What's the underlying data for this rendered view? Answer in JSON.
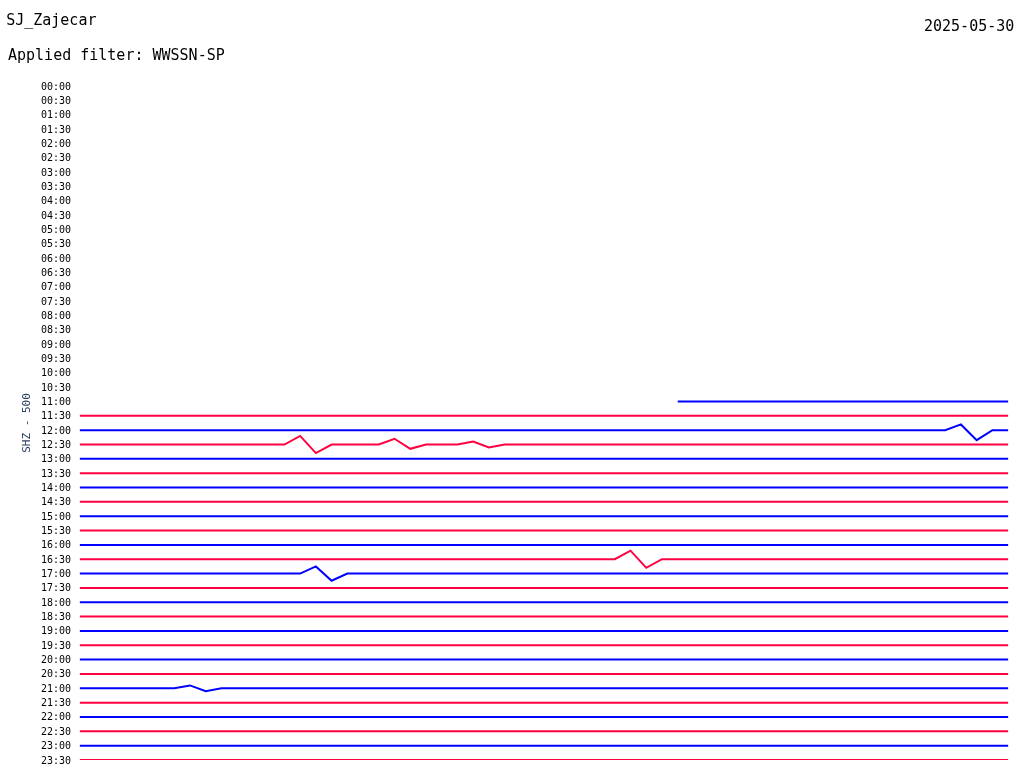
{
  "chart_data": {
    "type": "line",
    "title": "SJ_Zajecar",
    "subtitle": "Applied filter: WWSSN-SP",
    "ylabel": "SHZ - 500",
    "annotations": [
      "2025-05-30"
    ],
    "ylim": [
      23.5,
      0
    ],
    "tick_labels": "y",
    "marker": "none",
    "line_style": "solid",
    "categories": [
      null,
      null,
      null,
      null,
      null,
      null,
      null,
      null,
      null,
      null,
      null,
      null,
      null,
      null,
      null,
      null,
      null,
      null,
      null,
      null,
      null,
      null,
      null,
      null,
      null,
      null,
      null,
      null,
      null,
      null,
      null,
      null,
      null,
      null,
      null,
      null,
      null,
      null,
      null,
      null,
      null,
      null,
      null,
      null,
      null,
      null,
      null,
      null,
      null,
      null,
      null,
      null,
      null,
      null,
      null,
      null,
      null,
      null,
      null,
      null
    ],
    "yticks": [
      {
        "value": 0,
        "label": "00:00"
      },
      {
        "value": 0.5,
        "label": "00:30"
      },
      {
        "value": 1,
        "label": "01:00"
      },
      {
        "value": 1.5,
        "label": "01:30"
      },
      {
        "value": 2,
        "label": "02:00"
      },
      {
        "value": 2.5,
        "label": "02:30"
      },
      {
        "value": 3,
        "label": "03:00"
      },
      {
        "value": 3.5,
        "label": "03:30"
      },
      {
        "value": 4,
        "label": "04:00"
      },
      {
        "value": 4.5,
        "label": "04:30"
      },
      {
        "value": 5,
        "label": "05:00"
      },
      {
        "value": 5.5,
        "label": "05:30"
      },
      {
        "value": 6,
        "label": "06:00"
      },
      {
        "value": 6.5,
        "label": "06:30"
      },
      {
        "value": 7,
        "label": "07:00"
      },
      {
        "value": 7.5,
        "label": "07:30"
      },
      {
        "value": 8,
        "label": "08:00"
      },
      {
        "value": 8.5,
        "label": "08:30"
      },
      {
        "value": 9,
        "label": "09:00"
      },
      {
        "value": 9.5,
        "label": "09:30"
      },
      {
        "value": 10,
        "label": "10:00"
      },
      {
        "value": 10.5,
        "label": "10:30"
      },
      {
        "value": 11,
        "label": "11:00"
      },
      {
        "value": 11.5,
        "label": "11:30"
      },
      {
        "value": 12,
        "label": "12:00"
      },
      {
        "value": 12.5,
        "label": "12:30"
      },
      {
        "value": 13,
        "label": "13:00"
      },
      {
        "value": 13.5,
        "label": "13:30"
      },
      {
        "value": 14,
        "label": "14:00"
      },
      {
        "value": 14.5,
        "label": "14:30"
      },
      {
        "value": 15,
        "label": "15:00"
      },
      {
        "value": 15.5,
        "label": "15:30"
      },
      {
        "value": 16,
        "label": "16:00"
      },
      {
        "value": 16.5,
        "label": "16:30"
      },
      {
        "value": 17,
        "label": "17:00"
      },
      {
        "value": 17.5,
        "label": "17:30"
      },
      {
        "value": 18,
        "label": "18:00"
      },
      {
        "value": 18.5,
        "label": "18:30"
      },
      {
        "value": 19,
        "label": "19:00"
      },
      {
        "value": 19.5,
        "label": "19:30"
      },
      {
        "value": 20,
        "label": "20:00"
      },
      {
        "value": 20.5,
        "label": "20:30"
      },
      {
        "value": 21,
        "label": "21:00"
      },
      {
        "value": 21.5,
        "label": "21:30"
      },
      {
        "value": 22,
        "label": "22:00"
      },
      {
        "value": 22.5,
        "label": "22:30"
      },
      {
        "value": 23,
        "label": "23:00"
      },
      {
        "value": 23.5,
        "label": "23:30"
      }
    ],
    "series": [
      {
        "color": "#0000ff",
        "values": [
          null,
          null,
          null,
          null,
          null,
          null,
          null,
          null,
          null,
          null,
          null,
          null,
          null,
          null,
          null,
          null,
          null,
          null,
          null,
          null,
          null,
          null,
          null,
          null,
          null,
          null,
          null,
          null,
          null,
          null,
          null,
          null,
          null,
          null,
          null,
          null,
          null,
          null,
          11,
          11,
          11,
          11,
          11,
          11,
          11,
          11,
          11,
          11,
          11,
          11,
          11,
          11,
          11,
          11,
          11,
          11,
          11,
          11,
          11,
          11
        ]
      },
      {
        "color": "#ff0040",
        "values": [
          11.5,
          11.5,
          11.5,
          11.5,
          11.5,
          11.5,
          11.5,
          11.5,
          11.5,
          11.5,
          11.5,
          11.5,
          11.5,
          11.5,
          11.5,
          11.5,
          11.5,
          11.5,
          11.5,
          11.5,
          11.5,
          11.5,
          11.5,
          11.5,
          11.5,
          11.5,
          11.5,
          11.5,
          11.5,
          11.5,
          11.5,
          11.5,
          11.5,
          11.5,
          11.5,
          11.5,
          11.5,
          11.5,
          11.5,
          11.5,
          11.5,
          11.5,
          11.5,
          11.5,
          11.5,
          11.5,
          11.5,
          11.5,
          11.5,
          11.5,
          11.5,
          11.5,
          11.5,
          11.5,
          11.5,
          11.5,
          11.5,
          11.5,
          11.5,
          11.5
        ]
      },
      {
        "color": "#0000ff",
        "values": [
          12,
          12,
          12,
          12,
          12,
          12,
          12,
          12,
          12,
          12,
          12,
          12,
          12,
          12,
          12,
          12,
          12,
          12,
          12,
          12,
          12,
          12,
          12,
          12,
          12,
          12,
          12,
          12,
          12,
          12,
          12,
          12,
          12,
          12,
          12,
          12,
          12,
          12,
          12,
          12,
          12,
          12,
          12,
          12,
          12,
          12,
          12,
          12,
          12,
          12,
          12,
          12,
          12,
          12,
          12,
          12,
          11.8,
          12.35,
          12,
          12
        ]
      },
      {
        "color": "#ff0040",
        "values": [
          12.5,
          12.5,
          12.5,
          12.5,
          12.5,
          12.5,
          12.5,
          12.5,
          12.5,
          12.5,
          12.5,
          12.5,
          12.5,
          12.5,
          12.2,
          12.8,
          12.5,
          12.5,
          12.5,
          12.5,
          12.3,
          12.65,
          12.5,
          12.5,
          12.5,
          12.4,
          12.6,
          12.5,
          12.5,
          12.5,
          12.5,
          12.5,
          12.5,
          12.5,
          12.5,
          12.5,
          12.5,
          12.5,
          12.5,
          12.5,
          12.5,
          12.5,
          12.5,
          12.5,
          12.5,
          12.5,
          12.5,
          12.5,
          12.5,
          12.5,
          12.5,
          12.5,
          12.5,
          12.5,
          12.5,
          12.5,
          12.5,
          12.5,
          12.5,
          12.5
        ]
      },
      {
        "color": "#0000ff",
        "values": [
          13,
          13,
          13,
          13,
          13,
          13,
          13,
          13,
          13,
          13,
          13,
          13,
          13,
          13,
          13,
          13,
          13,
          13,
          13,
          13,
          13,
          13,
          13,
          13,
          13,
          13,
          13,
          13,
          13,
          13,
          13,
          13,
          13,
          13,
          13,
          13,
          13,
          13,
          13,
          13,
          13,
          13,
          13,
          13,
          13,
          13,
          13,
          13,
          13,
          13,
          13,
          13,
          13,
          13,
          13,
          13,
          13,
          13,
          13,
          13
        ]
      },
      {
        "color": "#ff0040",
        "values": [
          13.5,
          13.5,
          13.5,
          13.5,
          13.5,
          13.5,
          13.5,
          13.5,
          13.5,
          13.5,
          13.5,
          13.5,
          13.5,
          13.5,
          13.5,
          13.5,
          13.5,
          13.5,
          13.5,
          13.5,
          13.5,
          13.5,
          13.5,
          13.5,
          13.5,
          13.5,
          13.5,
          13.5,
          13.5,
          13.5,
          13.5,
          13.5,
          13.5,
          13.5,
          13.5,
          13.5,
          13.5,
          13.5,
          13.5,
          13.5,
          13.5,
          13.5,
          13.5,
          13.5,
          13.5,
          13.5,
          13.5,
          13.5,
          13.5,
          13.5,
          13.5,
          13.5,
          13.5,
          13.5,
          13.5,
          13.5,
          13.5,
          13.5,
          13.5,
          13.5
        ]
      },
      {
        "color": "#0000ff",
        "values": [
          14,
          14,
          14,
          14,
          14,
          14,
          14,
          14,
          14,
          14,
          14,
          14,
          14,
          14,
          14,
          14,
          14,
          14,
          14,
          14,
          14,
          14,
          14,
          14,
          14,
          14,
          14,
          14,
          14,
          14,
          14,
          14,
          14,
          14,
          14,
          14,
          14,
          14,
          14,
          14,
          14,
          14,
          14,
          14,
          14,
          14,
          14,
          14,
          14,
          14,
          14,
          14,
          14,
          14,
          14,
          14,
          14,
          14,
          14,
          14
        ]
      },
      {
        "color": "#ff0040",
        "values": [
          14.5,
          14.5,
          14.5,
          14.5,
          14.5,
          14.5,
          14.5,
          14.5,
          14.5,
          14.5,
          14.5,
          14.5,
          14.5,
          14.5,
          14.5,
          14.5,
          14.5,
          14.5,
          14.5,
          14.5,
          14.5,
          14.5,
          14.5,
          14.5,
          14.5,
          14.5,
          14.5,
          14.5,
          14.5,
          14.5,
          14.5,
          14.5,
          14.5,
          14.5,
          14.5,
          14.5,
          14.5,
          14.5,
          14.5,
          14.5,
          14.5,
          14.5,
          14.5,
          14.5,
          14.5,
          14.5,
          14.5,
          14.5,
          14.5,
          14.5,
          14.5,
          14.5,
          14.5,
          14.5,
          14.5,
          14.5,
          14.5,
          14.5,
          14.5,
          14.5
        ]
      },
      {
        "color": "#0000ff",
        "values": [
          15,
          15,
          15,
          15,
          15,
          15,
          15,
          15,
          15,
          15,
          15,
          15,
          15,
          15,
          15,
          15,
          15,
          15,
          15,
          15,
          15,
          15,
          15,
          15,
          15,
          15,
          15,
          15,
          15,
          15,
          15,
          15,
          15,
          15,
          15,
          15,
          15,
          15,
          15,
          15,
          15,
          15,
          15,
          15,
          15,
          15,
          15,
          15,
          15,
          15,
          15,
          15,
          15,
          15,
          15,
          15,
          15,
          15,
          15,
          15
        ]
      },
      {
        "color": "#ff0040",
        "values": [
          15.5,
          15.5,
          15.5,
          15.5,
          15.5,
          15.5,
          15.5,
          15.5,
          15.5,
          15.5,
          15.5,
          15.5,
          15.5,
          15.5,
          15.5,
          15.5,
          15.5,
          15.5,
          15.5,
          15.5,
          15.5,
          15.5,
          15.5,
          15.5,
          15.5,
          15.5,
          15.5,
          15.5,
          15.5,
          15.5,
          15.5,
          15.5,
          15.5,
          15.5,
          15.5,
          15.5,
          15.5,
          15.5,
          15.5,
          15.5,
          15.5,
          15.5,
          15.5,
          15.5,
          15.5,
          15.5,
          15.5,
          15.5,
          15.5,
          15.5,
          15.5,
          15.5,
          15.5,
          15.5,
          15.5,
          15.5,
          15.5,
          15.5,
          15.5,
          15.5
        ]
      },
      {
        "color": "#0000ff",
        "values": [
          16,
          16,
          16,
          16,
          16,
          16,
          16,
          16,
          16,
          16,
          16,
          16,
          16,
          16,
          16,
          16,
          16,
          16,
          16,
          16,
          16,
          16,
          16,
          16,
          16,
          16,
          16,
          16,
          16,
          16,
          16,
          16,
          16,
          16,
          16,
          16,
          16,
          16,
          16,
          16,
          16,
          16,
          16,
          16,
          16,
          16,
          16,
          16,
          16,
          16,
          16,
          16,
          16,
          16,
          16,
          16,
          16,
          16,
          16,
          16
        ]
      },
      {
        "color": "#ff0040",
        "values": [
          16.5,
          16.5,
          16.5,
          16.5,
          16.5,
          16.5,
          16.5,
          16.5,
          16.5,
          16.5,
          16.5,
          16.5,
          16.5,
          16.5,
          16.5,
          16.5,
          16.5,
          16.5,
          16.5,
          16.5,
          16.5,
          16.5,
          16.5,
          16.5,
          16.5,
          16.5,
          16.5,
          16.5,
          16.5,
          16.5,
          16.5,
          16.5,
          16.5,
          16.5,
          16.5,
          16.2,
          16.8,
          16.5,
          16.5,
          16.5,
          16.5,
          16.5,
          16.5,
          16.5,
          16.5,
          16.5,
          16.5,
          16.5,
          16.5,
          16.5,
          16.5,
          16.5,
          16.5,
          16.5,
          16.5,
          16.5,
          16.5,
          16.5,
          16.5,
          16.5
        ]
      },
      {
        "color": "#0000ff",
        "values": [
          17,
          17,
          17,
          17,
          17,
          17,
          17,
          17,
          17,
          17,
          17,
          17,
          17,
          17,
          17,
          16.75,
          17.25,
          17,
          17,
          17,
          17,
          17,
          17,
          17,
          17,
          17,
          17,
          17,
          17,
          17,
          17,
          17,
          17,
          17,
          17,
          17,
          17,
          17,
          17,
          17,
          17,
          17,
          17,
          17,
          17,
          17,
          17,
          17,
          17,
          17,
          17,
          17,
          17,
          17,
          17,
          17,
          17,
          17,
          17,
          17
        ]
      },
      {
        "color": "#ff0040",
        "values": [
          17.5,
          17.5,
          17.5,
          17.5,
          17.5,
          17.5,
          17.5,
          17.5,
          17.5,
          17.5,
          17.5,
          17.5,
          17.5,
          17.5,
          17.5,
          17.5,
          17.5,
          17.5,
          17.5,
          17.5,
          17.5,
          17.5,
          17.5,
          17.5,
          17.5,
          17.5,
          17.5,
          17.5,
          17.5,
          17.5,
          17.5,
          17.5,
          17.5,
          17.5,
          17.5,
          17.5,
          17.5,
          17.5,
          17.5,
          17.5,
          17.5,
          17.5,
          17.5,
          17.5,
          17.5,
          17.5,
          17.5,
          17.5,
          17.5,
          17.5,
          17.5,
          17.5,
          17.5,
          17.5,
          17.5,
          17.5,
          17.5,
          17.5,
          17.5,
          17.5
        ]
      },
      {
        "color": "#0000ff",
        "values": [
          18,
          18,
          18,
          18,
          18,
          18,
          18,
          18,
          18,
          18,
          18,
          18,
          18,
          18,
          18,
          18,
          18,
          18,
          18,
          18,
          18,
          18,
          18,
          18,
          18,
          18,
          18,
          18,
          18,
          18,
          18,
          18,
          18,
          18,
          18,
          18,
          18,
          18,
          18,
          18,
          18,
          18,
          18,
          18,
          18,
          18,
          18,
          18,
          18,
          18,
          18,
          18,
          18,
          18,
          18,
          18,
          18,
          18,
          18,
          18
        ]
      },
      {
        "color": "#ff0040",
        "values": [
          18.5,
          18.5,
          18.5,
          18.5,
          18.5,
          18.5,
          18.5,
          18.5,
          18.5,
          18.5,
          18.5,
          18.5,
          18.5,
          18.5,
          18.5,
          18.5,
          18.5,
          18.5,
          18.5,
          18.5,
          18.5,
          18.5,
          18.5,
          18.5,
          18.5,
          18.5,
          18.5,
          18.5,
          18.5,
          18.5,
          18.5,
          18.5,
          18.5,
          18.5,
          18.5,
          18.5,
          18.5,
          18.5,
          18.5,
          18.5,
          18.5,
          18.5,
          18.5,
          18.5,
          18.5,
          18.5,
          18.5,
          18.5,
          18.5,
          18.5,
          18.5,
          18.5,
          18.5,
          18.5,
          18.5,
          18.5,
          18.5,
          18.5,
          18.5,
          18.5
        ]
      },
      {
        "color": "#0000ff",
        "values": [
          19,
          19,
          19,
          19,
          19,
          19,
          19,
          19,
          19,
          19,
          19,
          19,
          19,
          19,
          19,
          19,
          19,
          19,
          19,
          19,
          19,
          19,
          19,
          19,
          19,
          19,
          19,
          19,
          19,
          19,
          19,
          19,
          19,
          19,
          19,
          19,
          19,
          19,
          19,
          19,
          19,
          19,
          19,
          19,
          19,
          19,
          19,
          19,
          19,
          19,
          19,
          19,
          19,
          19,
          19,
          19,
          19,
          19,
          19,
          19
        ]
      },
      {
        "color": "#ff0040",
        "values": [
          19.5,
          19.5,
          19.5,
          19.5,
          19.5,
          19.5,
          19.5,
          19.5,
          19.5,
          19.5,
          19.5,
          19.5,
          19.5,
          19.5,
          19.5,
          19.5,
          19.5,
          19.5,
          19.5,
          19.5,
          19.5,
          19.5,
          19.5,
          19.5,
          19.5,
          19.5,
          19.5,
          19.5,
          19.5,
          19.5,
          19.5,
          19.5,
          19.5,
          19.5,
          19.5,
          19.5,
          19.5,
          19.5,
          19.5,
          19.5,
          19.5,
          19.5,
          19.5,
          19.5,
          19.5,
          19.5,
          19.5,
          19.5,
          19.5,
          19.5,
          19.5,
          19.5,
          19.5,
          19.5,
          19.5,
          19.5,
          19.5,
          19.5,
          19.5,
          19.5
        ]
      },
      {
        "color": "#0000ff",
        "values": [
          20,
          20,
          20,
          20,
          20,
          20,
          20,
          20,
          20,
          20,
          20,
          20,
          20,
          20,
          20,
          20,
          20,
          20,
          20,
          20,
          20,
          20,
          20,
          20,
          20,
          20,
          20,
          20,
          20,
          20,
          20,
          20,
          20,
          20,
          20,
          20,
          20,
          20,
          20,
          20,
          20,
          20,
          20,
          20,
          20,
          20,
          20,
          20,
          20,
          20,
          20,
          20,
          20,
          20,
          20,
          20,
          20,
          20,
          20,
          20
        ]
      },
      {
        "color": "#ff0040",
        "values": [
          20.5,
          20.5,
          20.5,
          20.5,
          20.5,
          20.5,
          20.5,
          20.5,
          20.5,
          20.5,
          20.5,
          20.5,
          20.5,
          20.5,
          20.5,
          20.5,
          20.5,
          20.5,
          20.5,
          20.5,
          20.5,
          20.5,
          20.5,
          20.5,
          20.5,
          20.5,
          20.5,
          20.5,
          20.5,
          20.5,
          20.5,
          20.5,
          20.5,
          20.5,
          20.5,
          20.5,
          20.5,
          20.5,
          20.5,
          20.5,
          20.5,
          20.5,
          20.5,
          20.5,
          20.5,
          20.5,
          20.5,
          20.5,
          20.5,
          20.5,
          20.5,
          20.5,
          20.5,
          20.5,
          20.5,
          20.5,
          20.5,
          20.5,
          20.5,
          20.5
        ]
      },
      {
        "color": "#0000ff",
        "values": [
          21,
          21,
          21,
          21,
          21,
          21,
          21,
          20.9,
          21.1,
          21,
          21,
          21,
          21,
          21,
          21,
          21,
          21,
          21,
          21,
          21,
          21,
          21,
          21,
          21,
          21,
          21,
          21,
          21,
          21,
          21,
          21,
          21,
          21,
          21,
          21,
          21,
          21,
          21,
          21,
          21,
          21,
          21,
          21,
          21,
          21,
          21,
          21,
          21,
          21,
          21,
          21,
          21,
          21,
          21,
          21,
          21,
          21,
          21,
          21,
          21
        ]
      },
      {
        "color": "#ff0040",
        "values": [
          21.5,
          21.5,
          21.5,
          21.5,
          21.5,
          21.5,
          21.5,
          21.5,
          21.5,
          21.5,
          21.5,
          21.5,
          21.5,
          21.5,
          21.5,
          21.5,
          21.5,
          21.5,
          21.5,
          21.5,
          21.5,
          21.5,
          21.5,
          21.5,
          21.5,
          21.5,
          21.5,
          21.5,
          21.5,
          21.5,
          21.5,
          21.5,
          21.5,
          21.5,
          21.5,
          21.5,
          21.5,
          21.5,
          21.5,
          21.5,
          21.5,
          21.5,
          21.5,
          21.5,
          21.5,
          21.5,
          21.5,
          21.5,
          21.5,
          21.5,
          21.5,
          21.5,
          21.5,
          21.5,
          21.5,
          21.5,
          21.5,
          21.5,
          21.5,
          21.5
        ]
      },
      {
        "color": "#0000ff",
        "values": [
          22,
          22,
          22,
          22,
          22,
          22,
          22,
          22,
          22,
          22,
          22,
          22,
          22,
          22,
          22,
          22,
          22,
          22,
          22,
          22,
          22,
          22,
          22,
          22,
          22,
          22,
          22,
          22,
          22,
          22,
          22,
          22,
          22,
          22,
          22,
          22,
          22,
          22,
          22,
          22,
          22,
          22,
          22,
          22,
          22,
          22,
          22,
          22,
          22,
          22,
          22,
          22,
          22,
          22,
          22,
          22,
          22,
          22,
          22,
          22
        ]
      },
      {
        "color": "#ff0040",
        "values": [
          22.5,
          22.5,
          22.5,
          22.5,
          22.5,
          22.5,
          22.5,
          22.5,
          22.5,
          22.5,
          22.5,
          22.5,
          22.5,
          22.5,
          22.5,
          22.5,
          22.5,
          22.5,
          22.5,
          22.5,
          22.5,
          22.5,
          22.5,
          22.5,
          22.5,
          22.5,
          22.5,
          22.5,
          22.5,
          22.5,
          22.5,
          22.5,
          22.5,
          22.5,
          22.5,
          22.5,
          22.5,
          22.5,
          22.5,
          22.5,
          22.5,
          22.5,
          22.5,
          22.5,
          22.5,
          22.5,
          22.5,
          22.5,
          22.5,
          22.5,
          22.5,
          22.5,
          22.5,
          22.5,
          22.5,
          22.5,
          22.5,
          22.5,
          22.5,
          22.5
        ]
      },
      {
        "color": "#0000ff",
        "values": [
          23,
          23,
          23,
          23,
          23,
          23,
          23,
          23,
          23,
          23,
          23,
          23,
          23,
          23,
          23,
          23,
          23,
          23,
          23,
          23,
          23,
          23,
          23,
          23,
          23,
          23,
          23,
          23,
          23,
          23,
          23,
          23,
          23,
          23,
          23,
          23,
          23,
          23,
          23,
          23,
          23,
          23,
          23,
          23,
          23,
          23,
          23,
          23,
          23,
          23,
          23,
          23,
          23,
          23,
          23,
          23,
          23,
          23,
          23,
          23
        ]
      },
      {
        "color": "#ff0040",
        "values": [
          23.5,
          23.5,
          23.5,
          23.5,
          23.5,
          23.5,
          23.5,
          23.5,
          23.5,
          23.5,
          23.5,
          23.5,
          23.5,
          23.5,
          23.5,
          23.5,
          23.5,
          23.5,
          23.5,
          23.5,
          23.5,
          23.5,
          23.5,
          23.5,
          23.5,
          23.5,
          23.5,
          23.5,
          23.5,
          23.5,
          23.5,
          23.5,
          23.5,
          23.5,
          23.5,
          23.5,
          23.5,
          23.5,
          23.5,
          23.5,
          23.5,
          23.5,
          23.5,
          23.5,
          23.5,
          23.5,
          23.5,
          23.5,
          23.5,
          23.5,
          23.5,
          23.5,
          23.5,
          23.5,
          23.5,
          23.5,
          23.5,
          23.5,
          23.5,
          23.5
        ]
      }
    ]
  }
}
